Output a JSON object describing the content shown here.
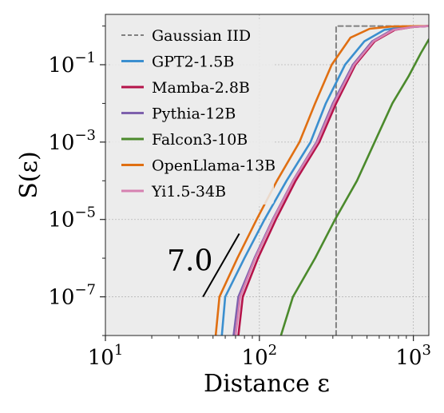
{
  "chart_data": {
    "type": "line",
    "xlabel": "Distance ε",
    "ylabel": "S(ε)",
    "xscale": "log",
    "yscale": "log",
    "xlim": [
      10,
      1260
    ],
    "ylim": [
      1e-08,
      2
    ],
    "grid": true,
    "legend_position": "upper-left",
    "x_ticks": [
      {
        "value": 10,
        "base": "10",
        "exp": "1"
      },
      {
        "value": 100,
        "base": "10",
        "exp": "2"
      },
      {
        "value": 1000,
        "base": "10",
        "exp": "3"
      }
    ],
    "y_ticks": [
      {
        "value": 0.1,
        "base": "10",
        "exp": "−1"
      },
      {
        "value": 0.001,
        "base": "10",
        "exp": "−3"
      },
      {
        "value": 1e-05,
        "base": "10",
        "exp": "−5"
      },
      {
        "value": 1e-07,
        "base": "10",
        "exp": "−7"
      }
    ],
    "annotation": {
      "text": "7.0",
      "slope": 7.0,
      "segment": [
        [
          43,
          1e-07
        ],
        [
          74,
          4.3e-06
        ]
      ]
    },
    "series": [
      {
        "name": "Gaussian IID",
        "color": "#808080",
        "dash": "6,4",
        "points": [
          [
            315,
            1e-08
          ],
          [
            315,
            1.0
          ],
          [
            1260,
            1.0
          ]
        ]
      },
      {
        "name": "GPT2-1.5B",
        "color": "#3b8fcf",
        "points": [
          [
            57,
            1e-08
          ],
          [
            60,
            1e-07
          ],
          [
            80,
            1e-06
          ],
          [
            108,
            1e-05
          ],
          [
            150,
            0.0001
          ],
          [
            215,
            0.001
          ],
          [
            270,
            0.01
          ],
          [
            360,
            0.1
          ],
          [
            480,
            0.4
          ],
          [
            650,
            0.8
          ],
          [
            900,
            0.95
          ],
          [
            1260,
            1.0
          ]
        ]
      },
      {
        "name": "Mamba-2.8B",
        "color": "#b5134a",
        "points": [
          [
            73,
            1e-08
          ],
          [
            78,
            1e-07
          ],
          [
            98,
            1e-06
          ],
          [
            128,
            1e-05
          ],
          [
            172,
            0.0001
          ],
          [
            245,
            0.001
          ],
          [
            315,
            0.01
          ],
          [
            420,
            0.1
          ],
          [
            560,
            0.4
          ],
          [
            760,
            0.8
          ],
          [
            1000,
            0.95
          ],
          [
            1260,
            1.0
          ]
        ]
      },
      {
        "name": "Pythia-12B",
        "color": "#7e61ad",
        "points": [
          [
            68,
            1e-08
          ],
          [
            73,
            1e-07
          ],
          [
            93,
            1e-06
          ],
          [
            122,
            1e-05
          ],
          [
            165,
            0.0001
          ],
          [
            235,
            0.001
          ],
          [
            300,
            0.01
          ],
          [
            405,
            0.1
          ],
          [
            540,
            0.4
          ],
          [
            730,
            0.8
          ],
          [
            980,
            0.95
          ],
          [
            1260,
            1.0
          ]
        ]
      },
      {
        "name": "Falcon3-10B",
        "color": "#4b8a2c",
        "points": [
          [
            138,
            1e-08
          ],
          [
            165,
            1e-07
          ],
          [
            230,
            1e-06
          ],
          [
            310,
            1e-05
          ],
          [
            430,
            0.0001
          ],
          [
            560,
            0.001
          ],
          [
            730,
            0.01
          ],
          [
            930,
            0.05
          ],
          [
            1120,
            0.2
          ],
          [
            1260,
            0.45
          ]
        ]
      },
      {
        "name": "OpenLlama-13B",
        "color": "#e06f12",
        "points": [
          [
            52,
            1e-08
          ],
          [
            55,
            1e-07
          ],
          [
            72,
            1e-06
          ],
          [
            96,
            1e-05
          ],
          [
            130,
            0.0001
          ],
          [
            182,
            0.001
          ],
          [
            230,
            0.01
          ],
          [
            295,
            0.1
          ],
          [
            390,
            0.5
          ],
          [
            520,
            0.85
          ],
          [
            720,
            0.97
          ],
          [
            1260,
            1.0
          ]
        ]
      },
      {
        "name": "Yi1.5-34B",
        "color": "#d681b1",
        "points": [
          [
            70,
            1e-08
          ],
          [
            75,
            1e-07
          ],
          [
            94,
            1e-06
          ],
          [
            123,
            1e-05
          ],
          [
            166,
            0.0001
          ],
          [
            238,
            0.001
          ],
          [
            305,
            0.01
          ],
          [
            412,
            0.1
          ],
          [
            550,
            0.4
          ],
          [
            745,
            0.8
          ],
          [
            990,
            0.95
          ],
          [
            1260,
            1.0
          ]
        ]
      }
    ]
  }
}
